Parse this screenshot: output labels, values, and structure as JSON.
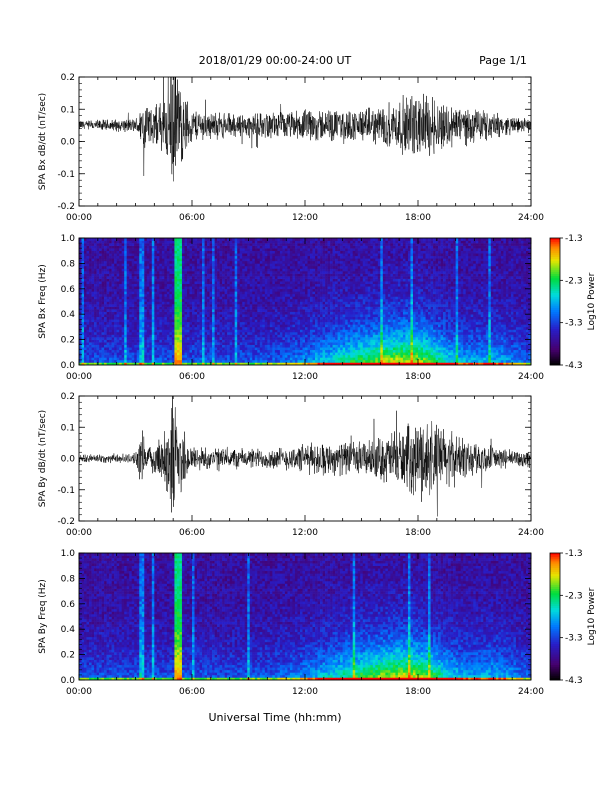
{
  "header": {
    "title": "2018/01/29  00:00-24:00 UT",
    "page": "Page 1/1"
  },
  "footer": {
    "xlabel": "Universal Time (hh:mm)"
  },
  "chart_data": [
    {
      "type": "line",
      "ylabel": "SPA Bx dB/dt (nT/sec)",
      "xlim": [
        0,
        24
      ],
      "ylim": [
        -0.2,
        0.2
      ],
      "x_ticks": [
        "00:00",
        "06:00",
        "12:00",
        "18:00",
        "24:00"
      ],
      "y_ticks": [
        "-0.2",
        "-0.1",
        "0.0",
        "0.1",
        "0.2"
      ],
      "baseline": 0.05,
      "envelope": {
        "hours": [
          0,
          3,
          3.5,
          4,
          4.6,
          5,
          5.4,
          6,
          7,
          9,
          11,
          12.5,
          14,
          15.5,
          16.5,
          17.5,
          18.5,
          19.5,
          21,
          23,
          24
        ],
        "amplitude": [
          0.015,
          0.02,
          0.08,
          0.05,
          0.1,
          0.22,
          0.12,
          0.05,
          0.04,
          0.035,
          0.04,
          0.05,
          0.045,
          0.05,
          0.07,
          0.09,
          0.1,
          0.07,
          0.05,
          0.025,
          0.02
        ]
      }
    },
    {
      "type": "heatmap",
      "ylabel": "SPA Bx Freq (Hz)",
      "xlim": [
        0,
        24
      ],
      "ylim": [
        0,
        1.0
      ],
      "x_ticks": [
        "00:00",
        "06:00",
        "12:00",
        "18:00",
        "24:00"
      ],
      "y_ticks": [
        "0.0",
        "0.2",
        "0.4",
        "0.6",
        "0.8",
        "1.0"
      ],
      "colorbar": {
        "label": "Log10 Power",
        "ticks": [
          "-1.3",
          "-2.3",
          "-3.3",
          "-4.3"
        ],
        "range": [
          -4.3,
          -1.3
        ]
      },
      "bright_band_hours": [
        5.1,
        5.5
      ]
    },
    {
      "type": "line",
      "ylabel": "SPA By dB/dt (nT/sec)",
      "xlim": [
        0,
        24
      ],
      "ylim": [
        -0.2,
        0.2
      ],
      "x_ticks": [
        "00:00",
        "06:00",
        "12:00",
        "18:00",
        "24:00"
      ],
      "y_ticks": [
        "-0.2",
        "-0.1",
        "0.0",
        "0.1",
        "0.2"
      ],
      "baseline": 0.0,
      "envelope": {
        "hours": [
          0,
          3,
          3.3,
          3.7,
          4.5,
          5,
          5.5,
          6,
          7,
          9,
          11,
          12.5,
          14,
          15.5,
          16.5,
          17.5,
          18.5,
          19.5,
          21,
          23,
          24
        ],
        "amplitude": [
          0.012,
          0.015,
          0.09,
          0.03,
          0.08,
          0.22,
          0.1,
          0.04,
          0.035,
          0.03,
          0.035,
          0.05,
          0.05,
          0.055,
          0.08,
          0.1,
          0.13,
          0.09,
          0.05,
          0.025,
          0.03
        ]
      }
    },
    {
      "type": "heatmap",
      "ylabel": "SPA By Freq (Hz)",
      "xlim": [
        0,
        24
      ],
      "ylim": [
        0,
        1.0
      ],
      "x_ticks": [
        "00:00",
        "06:00",
        "12:00",
        "18:00",
        "24:00"
      ],
      "y_ticks": [
        "0.0",
        "0.2",
        "0.4",
        "0.6",
        "0.8",
        "1.0"
      ],
      "colorbar": {
        "label": "Log10 Power",
        "ticks": [
          "-1.3",
          "-2.3",
          "-3.3",
          "-4.3"
        ],
        "range": [
          -4.3,
          -1.3
        ]
      },
      "bright_band_hours": [
        5.1,
        5.5
      ]
    }
  ]
}
